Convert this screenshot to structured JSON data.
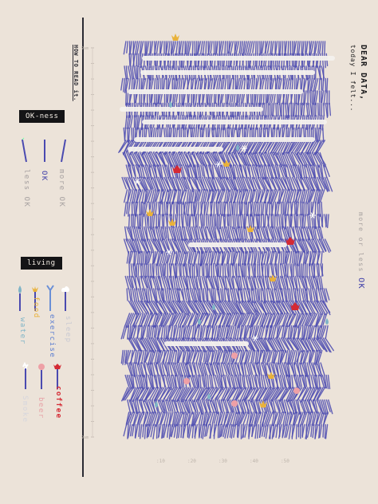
{
  "header": {
    "how_to_read": "HOW TO READ it.",
    "title": "DEAR DATA,",
    "subtitle": "today I felt..."
  },
  "okness_legend": {
    "title": "OK-ness",
    "items": [
      {
        "label": "less OK",
        "tilt": "left"
      },
      {
        "label": "OK",
        "tilt": "straight"
      },
      {
        "label": "more OK",
        "tilt": "right"
      }
    ]
  },
  "living_legend": {
    "title": "living",
    "items": [
      {
        "label": "water",
        "color": "#7fb0c4",
        "icon": "droplet-icon"
      },
      {
        "label": "food",
        "color": "#e9b23a",
        "icon": "crown-flower-icon"
      },
      {
        "label": "exercise",
        "color": "#5d7fd0",
        "icon": "y-branch-icon"
      },
      {
        "label": "sleep",
        "color": "#c9c9d2",
        "icon": "cloud-icon"
      },
      {
        "label": "Smoke",
        "color": "#d6d6dd",
        "icon": "smoke-icon"
      },
      {
        "label": "beer",
        "color": "#e7a0a5",
        "icon": "flower-icon"
      },
      {
        "label": "coffee",
        "color": "#d42a34",
        "icon": "red-flower-icon"
      }
    ]
  },
  "axis_note": {
    "text": "more or less",
    "ok": "OK"
  },
  "colors": {
    "background": "#ece3d9",
    "stroke": "#4a4ab0",
    "sleep": "#f4f1ee",
    "food": "#e9b23a",
    "coffee": "#d42a34",
    "beer": "#eea0a6",
    "water": "#7fb4c7",
    "smoke": "#ffffff"
  },
  "chart_data": {
    "type": "heatmap",
    "description_encoding": "each row is a time slot of the day, strokes tilt by OK-ness",
    "y_ticks": [
      "9am",
      "",
      "",
      "",
      "",
      "",
      "",
      "",
      "",
      "",
      "",
      "",
      "",
      "",
      "",
      "",
      "",
      "",
      "",
      "",
      "",
      "",
      "",
      "",
      "",
      "9am"
    ],
    "x_ticks": [
      "10",
      "20",
      "30",
      "40",
      "50"
    ]
  }
}
